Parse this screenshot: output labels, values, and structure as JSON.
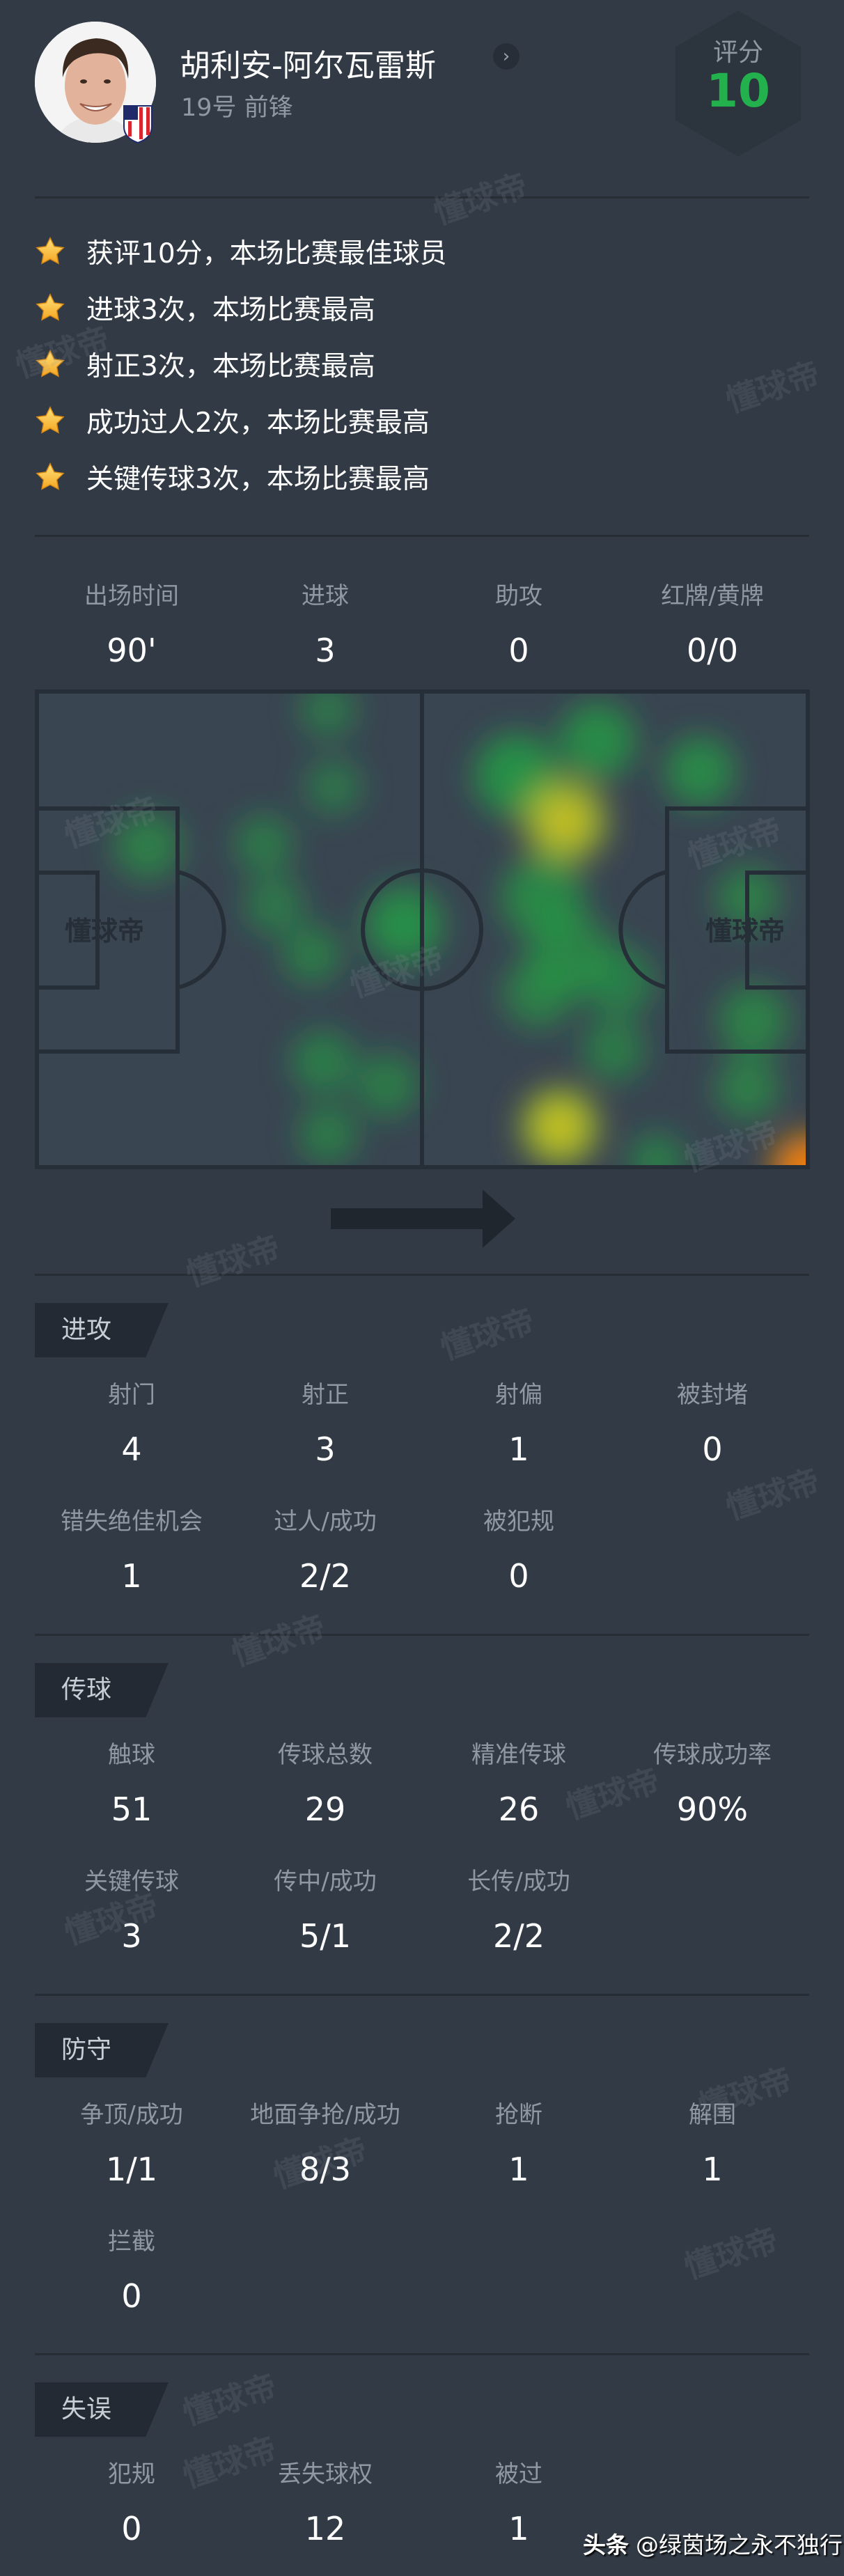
{
  "player": {
    "name": "胡利安-阿尔瓦雷斯",
    "subtitle": "19号 前锋",
    "rating_label": "评分",
    "rating_value": "10",
    "rating_color": "#22b14c"
  },
  "highlights": [
    "获评10分，本场比赛最佳球员",
    "进球3次，本场比赛最高",
    "射正3次，本场比赛最高",
    "成功过人2次，本场比赛最高",
    "关键传球3次，本场比赛最高"
  ],
  "summary": [
    {
      "label": "出场时间",
      "value": "90'"
    },
    {
      "label": "进球",
      "value": "3"
    },
    {
      "label": "助攻",
      "value": "0"
    },
    {
      "label": "红牌/黄牌",
      "value": "0/0"
    }
  ],
  "heatmap": {
    "attack_direction": "right"
  },
  "sections": [
    {
      "title": "进攻",
      "stats": [
        {
          "label": "射门",
          "value": "4"
        },
        {
          "label": "射正",
          "value": "3"
        },
        {
          "label": "射偏",
          "value": "1"
        },
        {
          "label": "被封堵",
          "value": "0"
        },
        {
          "label": "错失绝佳机会",
          "value": "1"
        },
        {
          "label": "过人/成功",
          "value": "2/2"
        },
        {
          "label": "被犯规",
          "value": "0"
        }
      ]
    },
    {
      "title": "传球",
      "stats": [
        {
          "label": "触球",
          "value": "51"
        },
        {
          "label": "传球总数",
          "value": "29"
        },
        {
          "label": "精准传球",
          "value": "26"
        },
        {
          "label": "传球成功率",
          "value": "90%"
        },
        {
          "label": "关键传球",
          "value": "3"
        },
        {
          "label": "传中/成功",
          "value": "5/1"
        },
        {
          "label": "长传/成功",
          "value": "2/2"
        }
      ]
    },
    {
      "title": "防守",
      "stats": [
        {
          "label": "争顶/成功",
          "value": "1/1"
        },
        {
          "label": "地面争抢/成功",
          "value": "8/3"
        },
        {
          "label": "抢断",
          "value": "1"
        },
        {
          "label": "解围",
          "value": "1"
        },
        {
          "label": "拦截",
          "value": "0"
        }
      ]
    },
    {
      "title": "失误",
      "stats": [
        {
          "label": "犯规",
          "value": "0"
        },
        {
          "label": "丢失球权",
          "value": "12"
        },
        {
          "label": "被过",
          "value": "1"
        }
      ]
    }
  ],
  "watermark": "懂球帝",
  "footer": {
    "platform": "头条",
    "author": "@绿茵场之永不独行"
  }
}
